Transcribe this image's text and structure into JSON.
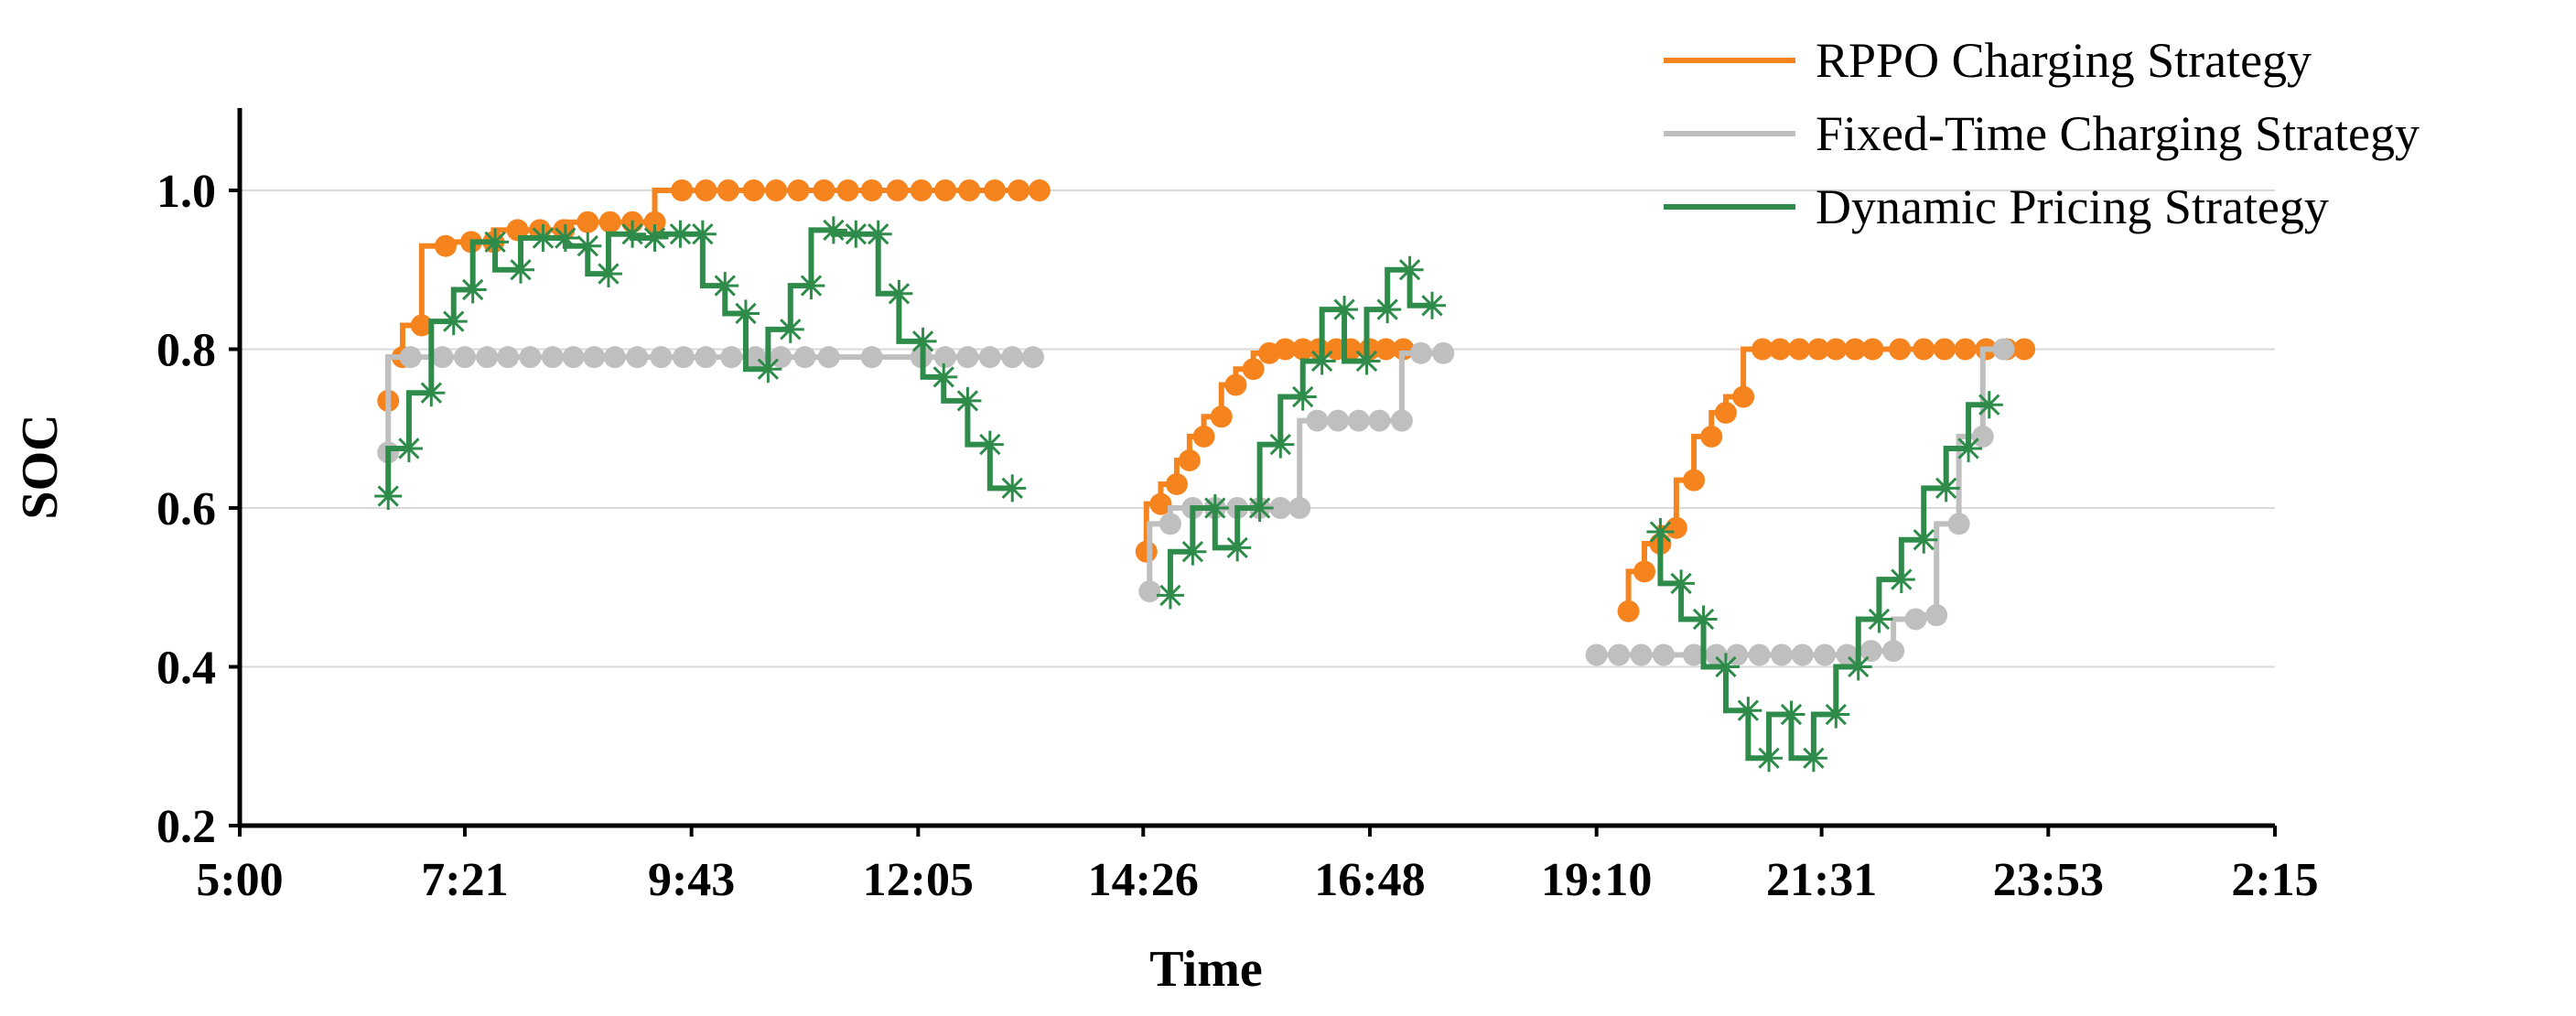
{
  "chart_data": {
    "type": "line",
    "title": "",
    "xlabel": "Time",
    "ylabel": "SOC",
    "x_ticks": [
      {
        "label": "5:00",
        "value": 300
      },
      {
        "label": "7:21",
        "value": 441
      },
      {
        "label": "9:43",
        "value": 583
      },
      {
        "label": "12:05",
        "value": 725
      },
      {
        "label": "14:26",
        "value": 866
      },
      {
        "label": "16:48",
        "value": 1008
      },
      {
        "label": "19:10",
        "value": 1150
      },
      {
        "label": "21:31",
        "value": 1291
      },
      {
        "label": "23:53",
        "value": 1433
      },
      {
        "label": "2:15",
        "value": 1575
      }
    ],
    "y_ticks": [
      {
        "label": "0.2",
        "value": 0.2
      },
      {
        "label": "0.4",
        "value": 0.4
      },
      {
        "label": "0.6",
        "value": 0.6
      },
      {
        "label": "0.8",
        "value": 0.8
      },
      {
        "label": "1.0",
        "value": 1.0
      }
    ],
    "xlim": [
      300,
      1575
    ],
    "ylim": [
      0.2,
      1.1
    ],
    "grid": "horizontal",
    "legend_position": "top-right",
    "series": [
      {
        "name": "RPPO Charging Strategy",
        "color": "#F5841F",
        "marker": "circle",
        "segments": [
          [
            [
              393,
              0.735
            ],
            [
              402,
              0.79
            ],
            [
              414,
              0.83
            ],
            [
              429,
              0.93
            ],
            [
              445,
              0.935
            ],
            [
              459,
              0.935
            ],
            [
              474,
              0.95
            ],
            [
              488,
              0.95
            ],
            [
              503,
              0.95
            ],
            [
              518,
              0.96
            ],
            [
              532,
              0.96
            ],
            [
              546,
              0.96
            ],
            [
              560,
              0.96
            ],
            [
              577,
              1.0
            ],
            [
              592,
              1.0
            ],
            [
              606,
              1.0
            ],
            [
              622,
              1.0
            ],
            [
              636,
              1.0
            ],
            [
              650,
              1.0
            ],
            [
              666,
              1.0
            ],
            [
              681,
              1.0
            ],
            [
              696,
              1.0
            ],
            [
              712,
              1.0
            ],
            [
              727,
              1.0
            ],
            [
              742,
              1.0
            ],
            [
              757,
              1.0
            ],
            [
              773,
              1.0
            ],
            [
              788,
              1.0
            ],
            [
              801,
              1.0
            ]
          ],
          [
            [
              868,
              0.545
            ],
            [
              877,
              0.605
            ],
            [
              887,
              0.63
            ],
            [
              895,
              0.66
            ],
            [
              904,
              0.69
            ],
            [
              915,
              0.715
            ],
            [
              924,
              0.755
            ],
            [
              935,
              0.775
            ],
            [
              945,
              0.795
            ],
            [
              955,
              0.8
            ],
            [
              966,
              0.8
            ],
            [
              976,
              0.8
            ],
            [
              987,
              0.8
            ],
            [
              996,
              0.8
            ],
            [
              1008,
              0.8
            ],
            [
              1018,
              0.8
            ],
            [
              1029,
              0.8
            ]
          ],
          [
            [
              1170,
              0.47
            ],
            [
              1180,
              0.52
            ],
            [
              1190,
              0.555
            ],
            [
              1200,
              0.575
            ],
            [
              1211,
              0.635
            ],
            [
              1222,
              0.69
            ],
            [
              1231,
              0.72
            ],
            [
              1242,
              0.74
            ],
            [
              1254,
              0.8
            ],
            [
              1265,
              0.8
            ],
            [
              1277,
              0.8
            ],
            [
              1289,
              0.8
            ],
            [
              1300,
              0.8
            ],
            [
              1312,
              0.8
            ],
            [
              1323,
              0.8
            ],
            [
              1340,
              0.8
            ],
            [
              1355,
              0.8
            ],
            [
              1368,
              0.8
            ],
            [
              1381,
              0.8
            ],
            [
              1394,
              0.8
            ],
            [
              1407,
              0.8
            ],
            [
              1418,
              0.8
            ]
          ]
        ]
      },
      {
        "name": "Fixed-Time Charging Strategy",
        "color": "#BFBFBF",
        "marker": "circle",
        "segments": [
          [
            [
              393,
              0.67
            ],
            [
              407,
              0.79
            ],
            [
              427,
              0.79
            ],
            [
              441,
              0.79
            ],
            [
              455,
              0.79
            ],
            [
              468,
              0.79
            ],
            [
              482,
              0.79
            ],
            [
              496,
              0.79
            ],
            [
              509,
              0.79
            ],
            [
              522,
              0.79
            ],
            [
              535,
              0.79
            ],
            [
              549,
              0.79
            ],
            [
              564,
              0.79
            ],
            [
              578,
              0.79
            ],
            [
              592,
              0.79
            ],
            [
              608,
              0.79
            ],
            [
              623,
              0.79
            ],
            [
              639,
              0.79
            ],
            [
              654,
              0.79
            ],
            [
              669,
              0.79
            ],
            [
              696,
              0.79
            ],
            [
              727,
              0.79
            ],
            [
              742,
              0.79
            ],
            [
              756,
              0.79
            ],
            [
              770,
              0.79
            ],
            [
              784,
              0.79
            ],
            [
              797,
              0.79
            ]
          ],
          [
            [
              870,
              0.495
            ],
            [
              883,
              0.58
            ],
            [
              897,
              0.6
            ],
            [
              911,
              0.6
            ],
            [
              925,
              0.6
            ],
            [
              939,
              0.6
            ],
            [
              952,
              0.6
            ],
            [
              964,
              0.6
            ],
            [
              975,
              0.71
            ],
            [
              988,
              0.71
            ],
            [
              1001,
              0.71
            ],
            [
              1014,
              0.71
            ],
            [
              1028,
              0.71
            ],
            [
              1040,
              0.795
            ],
            [
              1054,
              0.795
            ]
          ],
          [
            [
              1150,
              0.415
            ],
            [
              1164,
              0.415
            ],
            [
              1178,
              0.415
            ],
            [
              1192,
              0.415
            ],
            [
              1211,
              0.415
            ],
            [
              1225,
              0.415
            ],
            [
              1238,
              0.415
            ],
            [
              1252,
              0.415
            ],
            [
              1266,
              0.415
            ],
            [
              1279,
              0.415
            ],
            [
              1293,
              0.415
            ],
            [
              1307,
              0.415
            ],
            [
              1322,
              0.42
            ],
            [
              1336,
              0.42
            ],
            [
              1350,
              0.46
            ],
            [
              1363,
              0.465
            ],
            [
              1377,
              0.58
            ],
            [
              1392,
              0.69
            ],
            [
              1405,
              0.8
            ]
          ]
        ]
      },
      {
        "name": "Dynamic Pricing Strategy",
        "color": "#2E8B4A",
        "marker": "asterisk",
        "segments": [
          [
            [
              393,
              0.615
            ],
            [
              406,
              0.675
            ],
            [
              420,
              0.745
            ],
            [
              434,
              0.835
            ],
            [
              446,
              0.875
            ],
            [
              460,
              0.935
            ],
            [
              476,
              0.9
            ],
            [
              490,
              0.94
            ],
            [
              504,
              0.94
            ],
            [
              518,
              0.93
            ],
            [
              531,
              0.895
            ],
            [
              546,
              0.945
            ],
            [
              560,
              0.94
            ],
            [
              576,
              0.945
            ],
            [
              590,
              0.945
            ],
            [
              604,
              0.88
            ],
            [
              617,
              0.845
            ],
            [
              631,
              0.775
            ],
            [
              645,
              0.825
            ],
            [
              658,
              0.88
            ],
            [
              672,
              0.95
            ],
            [
              686,
              0.945
            ],
            [
              700,
              0.945
            ],
            [
              713,
              0.87
            ],
            [
              728,
              0.81
            ],
            [
              741,
              0.765
            ],
            [
              756,
              0.735
            ],
            [
              770,
              0.68
            ],
            [
              784,
              0.625
            ]
          ],
          [
            [
              883,
              0.49
            ],
            [
              897,
              0.545
            ],
            [
              911,
              0.6
            ],
            [
              925,
              0.55
            ],
            [
              939,
              0.6
            ],
            [
              952,
              0.68
            ],
            [
              966,
              0.74
            ],
            [
              978,
              0.785
            ],
            [
              992,
              0.85
            ],
            [
              1006,
              0.785
            ],
            [
              1019,
              0.85
            ],
            [
              1033,
              0.9
            ],
            [
              1047,
              0.855
            ]
          ],
          [
            [
              1190,
              0.57
            ],
            [
              1203,
              0.505
            ],
            [
              1217,
              0.46
            ],
            [
              1231,
              0.4
            ],
            [
              1245,
              0.345
            ],
            [
              1258,
              0.285
            ],
            [
              1272,
              0.34
            ],
            [
              1286,
              0.285
            ],
            [
              1300,
              0.34
            ],
            [
              1314,
              0.4
            ],
            [
              1327,
              0.46
            ],
            [
              1341,
              0.51
            ],
            [
              1355,
              0.56
            ],
            [
              1369,
              0.625
            ],
            [
              1383,
              0.675
            ],
            [
              1396,
              0.73
            ]
          ]
        ]
      }
    ]
  }
}
